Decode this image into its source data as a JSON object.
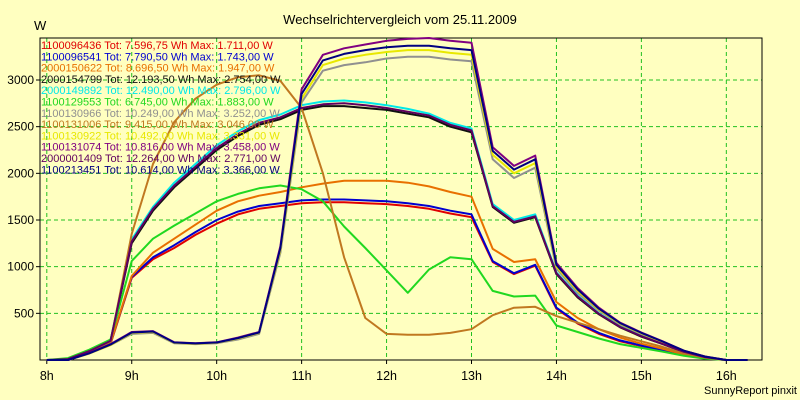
{
  "chart_data": {
    "type": "line",
    "title": "Wechselrichtervergleich vom 25.11.2009",
    "ylabel": "W",
    "footer": "SunnyReport pinxit",
    "ylim": [
      0,
      3450
    ],
    "yticks": [
      500,
      1000,
      1500,
      2000,
      2500,
      3000
    ],
    "xlim": [
      7.92,
      16.42
    ],
    "xticks": [
      8,
      9,
      10,
      11,
      12,
      13,
      14,
      15,
      16
    ],
    "xtick_labels": [
      "8h",
      "9h",
      "10h",
      "11h",
      "12h",
      "13h",
      "14h",
      "15h",
      "16h"
    ],
    "grid": true,
    "legend_placement": "top-left",
    "x": [
      8.0,
      8.25,
      8.5,
      8.75,
      9.0,
      9.25,
      9.5,
      9.75,
      10.0,
      10.25,
      10.5,
      10.75,
      11.0,
      11.25,
      11.5,
      11.75,
      12.0,
      12.25,
      12.5,
      12.75,
      13.0,
      13.25,
      13.5,
      13.75,
      14.0,
      14.25,
      14.5,
      14.75,
      15.0,
      15.25,
      15.5,
      15.75,
      16.0,
      16.25
    ],
    "series": [
      {
        "name": "1100096436 Tot: 7.596,75 Wh Max: 1.711,00 W",
        "color": "#e00000",
        "values": [
          0,
          0,
          80,
          170,
          880,
          1080,
          1200,
          1340,
          1460,
          1560,
          1620,
          1650,
          1680,
          1690,
          1690,
          1680,
          1670,
          1650,
          1620,
          1570,
          1530,
          1050,
          920,
          1010,
          550,
          390,
          280,
          200,
          150,
          100,
          50,
          20,
          0,
          0
        ]
      },
      {
        "name": "1100096541 Tot: 7.790,50 Wh Max: 1.743,00 W",
        "color": "#0000d0",
        "values": [
          0,
          0,
          80,
          180,
          890,
          1100,
          1230,
          1370,
          1500,
          1590,
          1650,
          1680,
          1710,
          1720,
          1720,
          1710,
          1700,
          1680,
          1650,
          1600,
          1560,
          1060,
          930,
          1020,
          560,
          400,
          290,
          210,
          155,
          105,
          55,
          20,
          0,
          0
        ]
      },
      {
        "name": "2000150622 Tot: 8.696,50 Wh Max: 1.947,00 W",
        "color": "#e87000",
        "values": [
          0,
          0,
          85,
          180,
          900,
          1150,
          1300,
          1450,
          1600,
          1700,
          1760,
          1800,
          1850,
          1890,
          1920,
          1920,
          1920,
          1900,
          1860,
          1800,
          1750,
          1190,
          1050,
          1080,
          620,
          450,
          330,
          240,
          175,
          120,
          60,
          25,
          0,
          0
        ]
      },
      {
        "name": "2000154799 Tot: 12.193,50 Wh Max: 2.754,00 W",
        "color": "#101010",
        "values": [
          0,
          10,
          95,
          200,
          1250,
          1600,
          1850,
          2050,
          2250,
          2400,
          2520,
          2580,
          2680,
          2720,
          2720,
          2700,
          2680,
          2640,
          2600,
          2500,
          2440,
          1640,
          1470,
          1530,
          920,
          670,
          490,
          350,
          250,
          170,
          85,
          30,
          0,
          0
        ]
      },
      {
        "name": "2000149892 Tot: 12.490,00 Wh Max: 2.796,00 W",
        "color": "#00e8e8",
        "values": [
          0,
          10,
          100,
          210,
          1290,
          1640,
          1900,
          2100,
          2300,
          2450,
          2570,
          2630,
          2730,
          2770,
          2780,
          2760,
          2730,
          2690,
          2640,
          2540,
          2480,
          1670,
          1500,
          1560,
          940,
          690,
          500,
          360,
          260,
          175,
          90,
          32,
          0,
          0
        ]
      },
      {
        "name": "1100129553 Tot: 6.745,00 Wh Max: 1.883,00 W",
        "color": "#20d820",
        "values": [
          0,
          20,
          110,
          220,
          1060,
          1300,
          1440,
          1570,
          1700,
          1780,
          1840,
          1870,
          1830,
          1700,
          1430,
          1200,
          960,
          720,
          970,
          1100,
          1080,
          740,
          680,
          690,
          370,
          300,
          230,
          170,
          130,
          90,
          45,
          15,
          0,
          0
        ]
      },
      {
        "name": "1100130966 Tot: 10.249,00 Wh Max: 3.252,00 W",
        "color": "#909090",
        "values": [
          0,
          0,
          70,
          160,
          280,
          290,
          180,
          170,
          180,
          220,
          280,
          1150,
          2760,
          3100,
          3160,
          3190,
          3230,
          3250,
          3250,
          3220,
          3200,
          2150,
          1950,
          2060,
          980,
          720,
          530,
          380,
          280,
          190,
          95,
          35,
          0,
          0
        ]
      },
      {
        "name": "1100131006 Tot: 9.415,00 Wh Max: 3.046,00 W",
        "color": "#c07820",
        "values": [
          0,
          0,
          90,
          190,
          1350,
          2100,
          2550,
          2800,
          2950,
          3030,
          3050,
          2990,
          2700,
          2000,
          1100,
          450,
          280,
          270,
          270,
          290,
          330,
          480,
          560,
          570,
          470,
          400,
          330,
          260,
          200,
          140,
          70,
          25,
          0,
          0
        ]
      },
      {
        "name": "1100130922 Tot: 10.492,00 Wh Max: 3.331,00 W",
        "color": "#e8e800",
        "values": [
          0,
          0,
          70,
          160,
          290,
          300,
          185,
          175,
          185,
          230,
          290,
          1180,
          2800,
          3160,
          3230,
          3270,
          3300,
          3320,
          3320,
          3290,
          3270,
          2200,
          2000,
          2110,
          1000,
          740,
          540,
          390,
          285,
          195,
          100,
          35,
          0,
          0
        ]
      },
      {
        "name": "1100131074 Tot: 10.816,00 Wh Max: 3.458,00 W",
        "color": "#800080",
        "values": [
          0,
          0,
          75,
          170,
          300,
          310,
          190,
          180,
          190,
          240,
          300,
          1220,
          2900,
          3270,
          3340,
          3380,
          3420,
          3440,
          3450,
          3420,
          3400,
          2280,
          2080,
          2190,
          1040,
          770,
          560,
          400,
          295,
          200,
          100,
          38,
          0,
          0
        ]
      },
      {
        "name": "2000001409 Tot: 12.264,00 Wh Max: 2.771,00 W",
        "color": "#600060",
        "values": [
          0,
          10,
          95,
          205,
          1270,
          1620,
          1870,
          2070,
          2270,
          2420,
          2540,
          2600,
          2700,
          2740,
          2750,
          2730,
          2700,
          2660,
          2620,
          2520,
          2460,
          1650,
          1480,
          1540,
          930,
          680,
          495,
          355,
          255,
          172,
          88,
          31,
          0,
          0
        ]
      },
      {
        "name": "1100213451 Tot: 10.614,00 Wh Max: 3.366,00 W",
        "color": "#000080",
        "values": [
          0,
          0,
          72,
          165,
          295,
          305,
          188,
          178,
          188,
          235,
          295,
          1200,
          2850,
          3210,
          3280,
          3320,
          3350,
          3366,
          3366,
          3340,
          3320,
          2240,
          2040,
          2150,
          1020,
          755,
          550,
          395,
          290,
          198,
          100,
          36,
          0,
          0
        ]
      }
    ]
  }
}
